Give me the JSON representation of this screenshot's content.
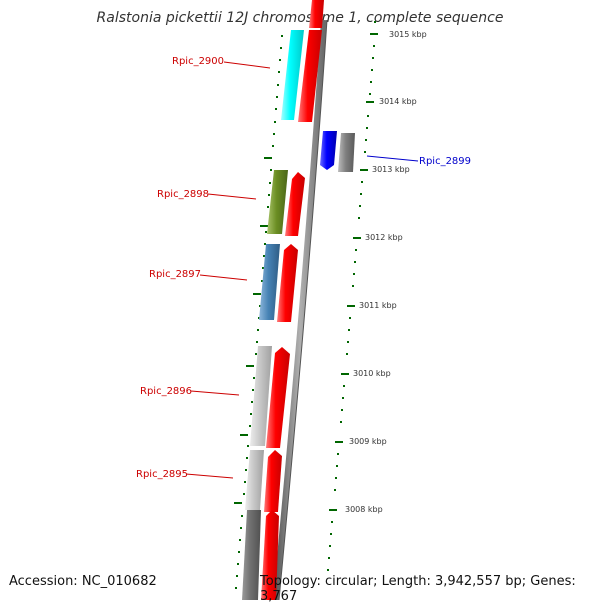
{
  "title": "Ralstonia pickettii 12J chromosome 1, complete sequence",
  "accession": "Accession: NC_010682",
  "topology": "Topology: circular; Length: 3,942,557 bp; Genes: 3,767",
  "gene_labels": {
    "g2900": "Rpic_2900",
    "g2899": "Rpic_2899",
    "g2898": "Rpic_2898",
    "g2897": "Rpic_2897",
    "g2896": "Rpic_2896",
    "g2895": "Rpic_2895"
  },
  "kbp_ticks": [
    "3015 kbp",
    "3014 kbp",
    "3013 kbp",
    "3012 kbp",
    "3011 kbp",
    "3010 kbp",
    "3009 kbp",
    "3008 kbp"
  ],
  "colors": {
    "label_red": "#cc0000",
    "label_blue": "#0000cc",
    "tick_green": "#006600",
    "cds_red": "#ff0000",
    "cyan": "#00ffff",
    "olive": "#6b8e23",
    "steelblue": "#4682b4",
    "blue": "#0000ff",
    "gray": "#808080",
    "lightgray": "#c8c8c8"
  }
}
